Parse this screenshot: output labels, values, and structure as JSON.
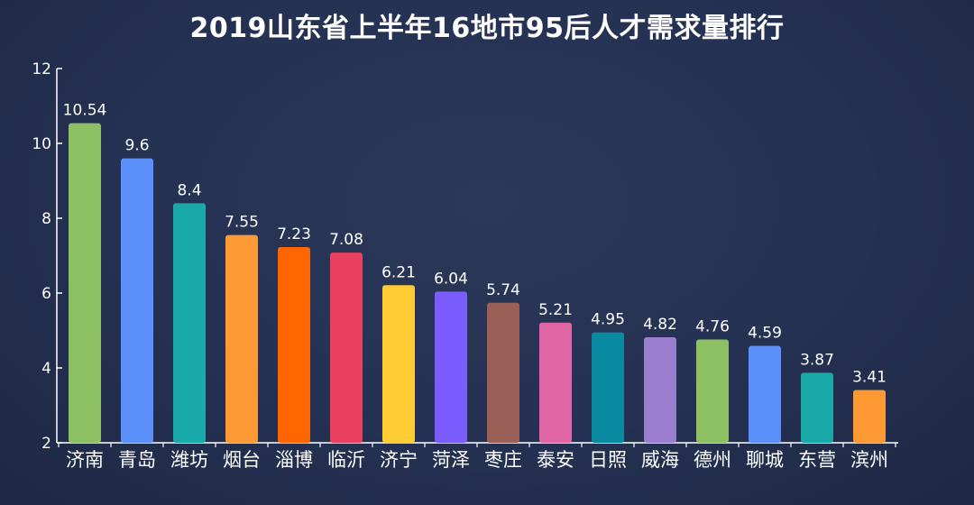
{
  "chart_data": {
    "type": "bar",
    "title": "2019山东省上半年16地市95后人才需求量排行",
    "xlabel": "",
    "ylabel": "",
    "ylim": [
      2,
      12
    ],
    "yticks": [
      2,
      4,
      6,
      8,
      10,
      12
    ],
    "grid": false,
    "categories": [
      "济南",
      "青岛",
      "潍坊",
      "烟台",
      "淄博",
      "临沂",
      "济宁",
      "菏泽",
      "枣庄",
      "泰安",
      "日照",
      "威海",
      "德州",
      "聊城",
      "东营",
      "滨州"
    ],
    "values": [
      10.54,
      9.6,
      8.4,
      7.55,
      7.23,
      7.08,
      6.21,
      6.04,
      5.74,
      5.21,
      4.95,
      4.82,
      4.76,
      4.59,
      3.87,
      3.41
    ],
    "value_labels": [
      "10.54",
      "9.6",
      "8.4",
      "7.55",
      "7.23",
      "7.08",
      "6.21",
      "6.04",
      "5.74",
      "5.21",
      "4.95",
      "4.82",
      "4.76",
      "4.59",
      "3.87",
      "3.41"
    ],
    "colors": [
      "#8dc063",
      "#5b8ff9",
      "#1aa9a9",
      "#ff9933",
      "#ff6600",
      "#e8405e",
      "#ffcc33",
      "#7a5cff",
      "#9a5f57",
      "#e066a6",
      "#0a8aa0",
      "#9b7fce",
      "#8dc063",
      "#5b8ff9",
      "#1aa9a9",
      "#ff9933"
    ]
  },
  "colors": {
    "background": "#253152",
    "axis": "#ffffff",
    "text": "#ffffff"
  }
}
